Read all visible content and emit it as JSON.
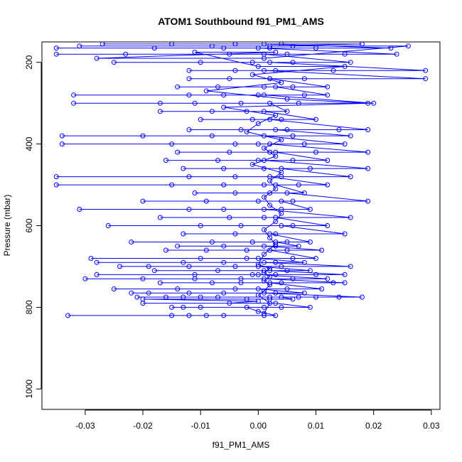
{
  "chart_data": {
    "type": "line",
    "title": "ATOM1 Southbound f91_PM1_AMS",
    "xlabel": "f91_PM1_AMS",
    "ylabel": "Pressure (mbar)",
    "xlim": [
      -0.0375,
      0.0315
    ],
    "ylim": [
      1050,
      150
    ],
    "y_reversed": true,
    "x_ticks": [
      -0.03,
      -0.02,
      -0.01,
      0.0,
      0.01,
      0.02,
      0.03
    ],
    "x_tick_labels": [
      "-0.03",
      "-0.02",
      "-0.01",
      "0.00",
      "0.01",
      "0.02",
      "0.03"
    ],
    "y_ticks": [
      200,
      400,
      600,
      800,
      1000
    ],
    "y_tick_labels": [
      "200",
      "400",
      "600",
      "800",
      "1000"
    ],
    "grid": false,
    "marker": "open-circle",
    "color": "#0000ff",
    "series": [
      {
        "points": [
          [
            0.001,
            820
          ],
          [
            -0.033,
            820
          ],
          [
            -0.015,
            820
          ],
          [
            -0.012,
            820
          ],
          [
            -0.009,
            820
          ],
          [
            -0.006,
            820
          ],
          [
            0.003,
            820
          ],
          [
            0.0,
            810
          ],
          [
            -0.002,
            800
          ],
          [
            -0.015,
            800
          ],
          [
            -0.013,
            800
          ],
          [
            -0.01,
            800
          ],
          [
            0.001,
            800
          ],
          [
            0.004,
            800
          ],
          [
            0.009,
            800
          ],
          [
            0.003,
            790
          ],
          [
            -0.02,
            790
          ],
          [
            -0.005,
            790
          ],
          [
            0.0,
            785
          ],
          [
            -0.02,
            780
          ],
          [
            -0.002,
            780
          ],
          [
            0.002,
            780
          ],
          [
            0.006,
            780
          ],
          [
            0.004,
            775
          ],
          [
            -0.021,
            775
          ],
          [
            -0.016,
            775
          ],
          [
            -0.013,
            775
          ],
          [
            -0.01,
            775
          ],
          [
            -0.007,
            775
          ],
          [
            0.002,
            775
          ],
          [
            0.007,
            775
          ],
          [
            0.01,
            775
          ],
          [
            0.014,
            775
          ],
          [
            0.018,
            775
          ],
          [
            0.001,
            765
          ],
          [
            -0.022,
            765
          ],
          [
            -0.019,
            765
          ],
          [
            -0.012,
            765
          ],
          [
            -0.006,
            765
          ],
          [
            0.003,
            765
          ],
          [
            0.008,
            765
          ],
          [
            0.0,
            755
          ],
          [
            -0.025,
            755
          ],
          [
            -0.014,
            755
          ],
          [
            -0.004,
            755
          ],
          [
            0.005,
            755
          ],
          [
            0.011,
            755
          ],
          [
            0.002,
            740
          ],
          [
            -0.017,
            740
          ],
          [
            -0.008,
            740
          ],
          [
            -0.003,
            740
          ],
          [
            0.004,
            740
          ],
          [
            0.013,
            740
          ],
          [
            0.015,
            740
          ],
          [
            0.001,
            730
          ],
          [
            -0.03,
            730
          ],
          [
            -0.02,
            730
          ],
          [
            -0.011,
            730
          ],
          [
            -0.003,
            730
          ],
          [
            0.006,
            730
          ],
          [
            0.012,
            730
          ],
          [
            0.0,
            720
          ],
          [
            -0.028,
            720
          ],
          [
            -0.011,
            720
          ],
          [
            -0.001,
            720
          ],
          [
            0.003,
            720
          ],
          [
            0.01,
            720
          ],
          [
            0.015,
            720
          ],
          [
            0.002,
            710
          ],
          [
            -0.018,
            710
          ],
          [
            -0.007,
            710
          ],
          [
            0.001,
            710
          ],
          [
            0.005,
            710
          ],
          [
            0.009,
            710
          ],
          [
            0.0,
            700
          ],
          [
            -0.024,
            700
          ],
          [
            -0.019,
            700
          ],
          [
            -0.012,
            700
          ],
          [
            -0.004,
            700
          ],
          [
            0.004,
            700
          ],
          [
            0.016,
            700
          ],
          [
            0.001,
            690
          ],
          [
            -0.028,
            690
          ],
          [
            -0.013,
            690
          ],
          [
            -0.006,
            690
          ],
          [
            0.003,
            690
          ],
          [
            0.008,
            690
          ],
          [
            0.0,
            680
          ],
          [
            -0.029,
            680
          ],
          [
            -0.01,
            680
          ],
          [
            -0.002,
            680
          ],
          [
            0.006,
            680
          ],
          [
            0.01,
            680
          ],
          [
            0.002,
            660
          ],
          [
            -0.016,
            660
          ],
          [
            -0.009,
            660
          ],
          [
            -0.002,
            660
          ],
          [
            0.005,
            660
          ],
          [
            0.011,
            660
          ],
          [
            0.001,
            650
          ],
          [
            -0.014,
            650
          ],
          [
            -0.006,
            650
          ],
          [
            0.003,
            650
          ],
          [
            0.007,
            650
          ],
          [
            0.003,
            640
          ],
          [
            -0.022,
            640
          ],
          [
            -0.008,
            640
          ],
          [
            -0.001,
            640
          ],
          [
            0.005,
            640
          ],
          [
            0.009,
            640
          ],
          [
            0.002,
            620
          ],
          [
            -0.013,
            620
          ],
          [
            -0.004,
            620
          ],
          [
            0.003,
            620
          ],
          [
            0.015,
            620
          ],
          [
            0.004,
            600
          ],
          [
            -0.026,
            600
          ],
          [
            -0.01,
            600
          ],
          [
            -0.003,
            600
          ],
          [
            0.006,
            600
          ],
          [
            0.012,
            600
          ],
          [
            0.003,
            580
          ],
          [
            -0.017,
            580
          ],
          [
            -0.005,
            580
          ],
          [
            0.001,
            580
          ],
          [
            0.016,
            580
          ],
          [
            0.001,
            560
          ],
          [
            -0.031,
            560
          ],
          [
            -0.012,
            560
          ],
          [
            -0.006,
            560
          ],
          [
            0.004,
            560
          ],
          [
            0.009,
            560
          ],
          [
            0.004,
            540
          ],
          [
            -0.02,
            540
          ],
          [
            -0.009,
            540
          ],
          [
            0.0,
            540
          ],
          [
            0.006,
            540
          ],
          [
            0.019,
            540
          ],
          [
            0.005,
            520
          ],
          [
            -0.011,
            520
          ],
          [
            -0.004,
            520
          ],
          [
            0.002,
            520
          ],
          [
            0.008,
            520
          ],
          [
            0.003,
            500
          ],
          [
            -0.035,
            500
          ],
          [
            -0.015,
            500
          ],
          [
            -0.006,
            500
          ],
          [
            0.001,
            500
          ],
          [
            0.007,
            500
          ],
          [
            0.012,
            500
          ],
          [
            0.002,
            480
          ],
          [
            -0.035,
            480
          ],
          [
            -0.012,
            480
          ],
          [
            -0.004,
            480
          ],
          [
            0.004,
            480
          ],
          [
            0.016,
            480
          ],
          [
            0.004,
            460
          ],
          [
            -0.013,
            460
          ],
          [
            -0.006,
            460
          ],
          [
            0.001,
            460
          ],
          [
            0.009,
            460
          ],
          [
            0.019,
            460
          ],
          [
            0.001,
            440
          ],
          [
            -0.016,
            440
          ],
          [
            -0.007,
            440
          ],
          [
            0.0,
            440
          ],
          [
            0.006,
            440
          ],
          [
            0.012,
            440
          ],
          [
            0.003,
            420
          ],
          [
            -0.014,
            420
          ],
          [
            -0.005,
            420
          ],
          [
            0.002,
            420
          ],
          [
            0.01,
            420
          ],
          [
            0.019,
            420
          ],
          [
            0.002,
            400
          ],
          [
            -0.034,
            400
          ],
          [
            -0.015,
            400
          ],
          [
            -0.004,
            400
          ],
          [
            0.0,
            400
          ],
          [
            0.008,
            400
          ],
          [
            0.015,
            400
          ],
          [
            0.001,
            380
          ],
          [
            -0.034,
            380
          ],
          [
            -0.02,
            380
          ],
          [
            -0.008,
            380
          ],
          [
            0.006,
            380
          ],
          [
            0.016,
            380
          ],
          [
            0.003,
            365
          ],
          [
            -0.012,
            365
          ],
          [
            -0.003,
            365
          ],
          [
            0.005,
            365
          ],
          [
            0.014,
            365
          ],
          [
            0.019,
            365
          ],
          [
            0.002,
            340
          ],
          [
            -0.01,
            340
          ],
          [
            -0.001,
            340
          ],
          [
            0.004,
            340
          ],
          [
            0.01,
            340
          ],
          [
            0.001,
            320
          ],
          [
            -0.017,
            320
          ],
          [
            -0.008,
            320
          ],
          [
            -0.002,
            320
          ],
          [
            0.005,
            320
          ],
          [
            0.002,
            300
          ],
          [
            -0.032,
            300
          ],
          [
            -0.017,
            300
          ],
          [
            -0.011,
            300
          ],
          [
            -0.003,
            300
          ],
          [
            0.007,
            300
          ],
          [
            0.02,
            300
          ],
          [
            0.001,
            280
          ],
          [
            -0.032,
            280
          ],
          [
            -0.012,
            280
          ],
          [
            -0.006,
            280
          ],
          [
            0.0,
            280
          ],
          [
            0.008,
            280
          ],
          [
            0.012,
            280
          ],
          [
            0.003,
            260
          ],
          [
            -0.014,
            260
          ],
          [
            -0.007,
            260
          ],
          [
            0.001,
            260
          ],
          [
            0.006,
            260
          ],
          [
            0.012,
            260
          ],
          [
            0.002,
            240
          ],
          [
            -0.012,
            240
          ],
          [
            -0.005,
            240
          ],
          [
            0.002,
            240
          ],
          [
            0.008,
            240
          ],
          [
            0.029,
            240
          ],
          [
            0.001,
            220
          ],
          [
            -0.012,
            220
          ],
          [
            -0.004,
            220
          ],
          [
            0.003,
            220
          ],
          [
            0.013,
            220
          ],
          [
            0.029,
            220
          ],
          [
            0.002,
            200
          ],
          [
            -0.025,
            200
          ],
          [
            -0.01,
            200
          ],
          [
            -0.001,
            200
          ],
          [
            0.006,
            200
          ],
          [
            0.016,
            200
          ],
          [
            0.001,
            180
          ],
          [
            -0.035,
            180
          ],
          [
            -0.023,
            180
          ],
          [
            -0.005,
            180
          ],
          [
            0.005,
            180
          ],
          [
            0.015,
            180
          ],
          [
            0.024,
            180
          ],
          [
            0.0,
            165
          ],
          [
            -0.035,
            165
          ],
          [
            -0.018,
            165
          ],
          [
            -0.006,
            165
          ],
          [
            0.002,
            165
          ],
          [
            0.01,
            165
          ],
          [
            0.023,
            165
          ],
          [
            0.001,
            155
          ],
          [
            -0.027,
            155
          ],
          [
            -0.015,
            155
          ],
          [
            -0.004,
            155
          ],
          [
            0.004,
            155
          ],
          [
            0.018,
            155
          ],
          [
            0.002,
            160
          ],
          [
            -0.031,
            160
          ],
          [
            -0.008,
            160
          ],
          [
            0.006,
            160
          ],
          [
            0.026,
            160
          ],
          [
            0.001,
            190
          ],
          [
            -0.028,
            190
          ],
          [
            0.003,
            175
          ],
          [
            -0.011,
            175
          ],
          [
            0.0,
            210
          ],
          [
            0.015,
            210
          ],
          [
            -0.001,
            230
          ],
          [
            0.004,
            250
          ],
          [
            -0.009,
            270
          ],
          [
            0.005,
            290
          ],
          [
            0.019,
            300
          ],
          [
            -0.006,
            310
          ],
          [
            0.003,
            330
          ],
          [
            0.0,
            350
          ],
          [
            -0.002,
            370
          ],
          [
            0.004,
            390
          ],
          [
            0.001,
            410
          ],
          [
            0.003,
            430
          ],
          [
            -0.001,
            450
          ],
          [
            0.004,
            470
          ],
          [
            0.002,
            490
          ],
          [
            0.003,
            510
          ],
          [
            0.001,
            530
          ],
          [
            0.002,
            550
          ],
          [
            0.004,
            570
          ],
          [
            0.003,
            590
          ],
          [
            0.001,
            610
          ],
          [
            0.002,
            630
          ],
          [
            0.003,
            645
          ],
          [
            0.001,
            670
          ],
          [
            0.0,
            695
          ],
          [
            0.002,
            705
          ],
          [
            0.001,
            715
          ],
          [
            0.002,
            725
          ],
          [
            0.001,
            735
          ],
          [
            0.002,
            745
          ],
          [
            0.001,
            760
          ],
          [
            0.0,
            770
          ],
          [
            0.002,
            790
          ],
          [
            0.001,
            815
          ]
        ]
      }
    ]
  }
}
